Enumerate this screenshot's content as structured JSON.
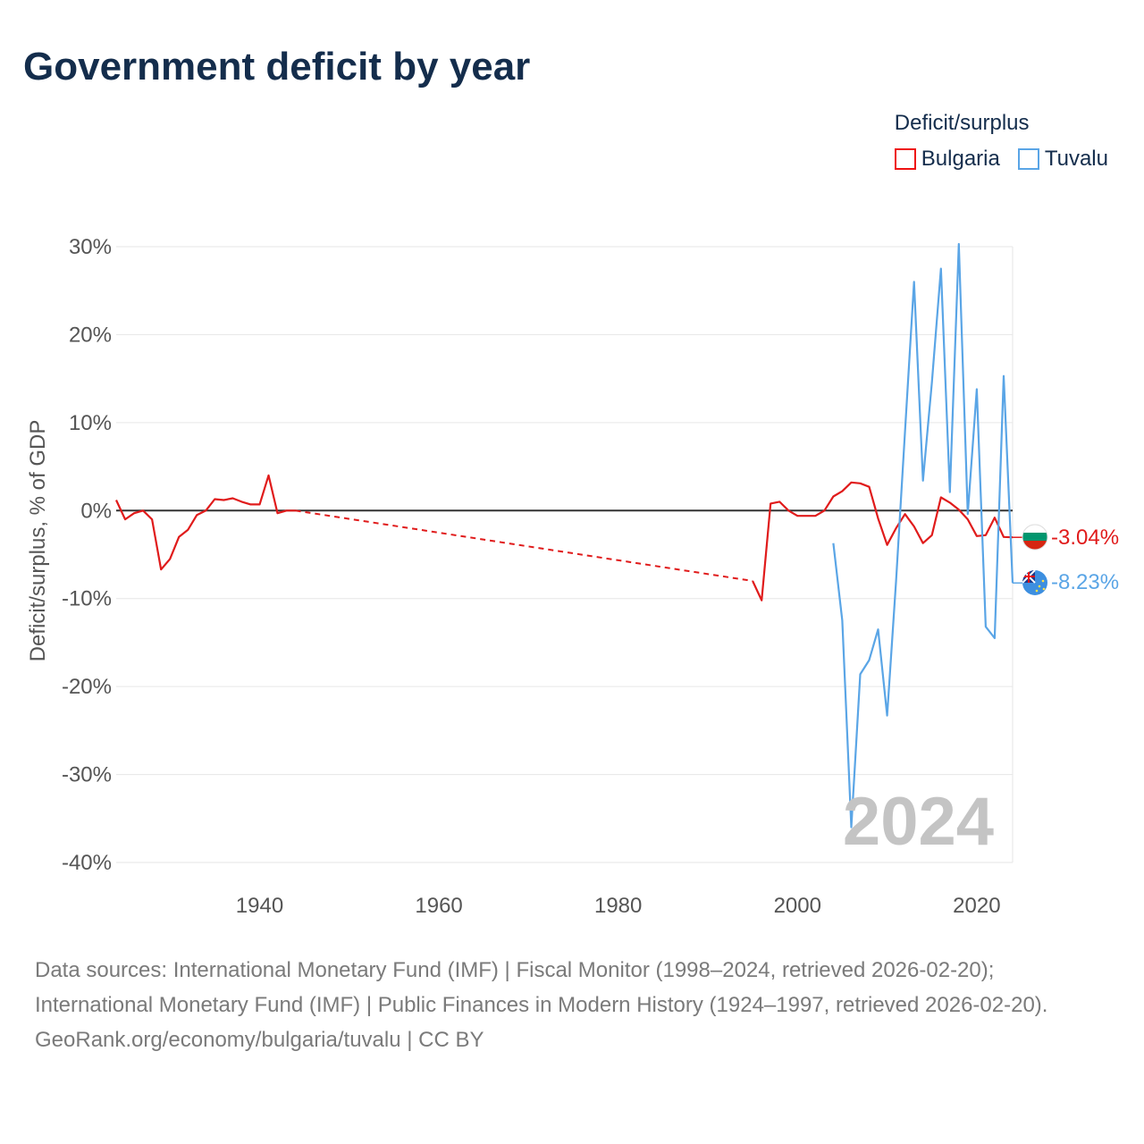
{
  "chart_data": {
    "type": "line",
    "title": "Government deficit by year",
    "ylabel": "Deficit/surplus, % of GDP",
    "xlabel": "",
    "xlim": [
      1924,
      2024
    ],
    "ylim": [
      -40,
      30
    ],
    "xticks": [
      1940,
      1960,
      1980,
      2000,
      2020
    ],
    "yticks": [
      30,
      20,
      10,
      0,
      -10,
      -20,
      -30,
      -40
    ],
    "ytick_labels": [
      "30%",
      "20%",
      "10%",
      "0%",
      "-10%",
      "-20%",
      "-30%",
      "-40%"
    ],
    "xtick_labels": [
      "1940",
      "1960",
      "1980",
      "2000",
      "2020"
    ],
    "legend_title": "Deficit/surplus",
    "year_watermark": "2024",
    "series": [
      {
        "name": "Bulgaria",
        "color": "#e01b1b",
        "end_label": "-3.04%",
        "flag_icon": "bulgaria-flag-icon",
        "gap_range": [
          1944,
          1995
        ],
        "points": [
          [
            1924,
            1.2
          ],
          [
            1925,
            -1.0
          ],
          [
            1926,
            -0.3
          ],
          [
            1927,
            0.0
          ],
          [
            1928,
            -1.0
          ],
          [
            1929,
            -6.7
          ],
          [
            1930,
            -5.5
          ],
          [
            1931,
            -3.0
          ],
          [
            1932,
            -2.2
          ],
          [
            1933,
            -0.5
          ],
          [
            1934,
            0.0
          ],
          [
            1935,
            1.3
          ],
          [
            1936,
            1.2
          ],
          [
            1937,
            1.4
          ],
          [
            1938,
            1.0
          ],
          [
            1939,
            0.7
          ],
          [
            1940,
            0.7
          ],
          [
            1941,
            4.0
          ],
          [
            1942,
            -0.3
          ],
          [
            1943,
            0.0
          ],
          [
            1944,
            0.0
          ],
          [
            1995,
            -8.0
          ],
          [
            1996,
            -10.2
          ],
          [
            1997,
            0.8
          ],
          [
            1998,
            1.0
          ],
          [
            1999,
            0.0
          ],
          [
            2000,
            -0.6
          ],
          [
            2001,
            -0.6
          ],
          [
            2002,
            -0.6
          ],
          [
            2003,
            0.0
          ],
          [
            2004,
            1.6
          ],
          [
            2005,
            2.2
          ],
          [
            2006,
            3.2
          ],
          [
            2007,
            3.1
          ],
          [
            2008,
            2.7
          ],
          [
            2009,
            -0.9
          ],
          [
            2010,
            -3.9
          ],
          [
            2011,
            -2.0
          ],
          [
            2012,
            -0.4
          ],
          [
            2013,
            -1.8
          ],
          [
            2014,
            -3.7
          ],
          [
            2015,
            -2.8
          ],
          [
            2016,
            1.5
          ],
          [
            2017,
            0.9
          ],
          [
            2018,
            0.1
          ],
          [
            2019,
            -1.0
          ],
          [
            2020,
            -2.9
          ],
          [
            2021,
            -2.8
          ],
          [
            2022,
            -0.8
          ],
          [
            2023,
            -3.0
          ],
          [
            2024,
            -3.04
          ]
        ]
      },
      {
        "name": "Tuvalu",
        "color": "#5aa5e6",
        "end_label": "-8.23%",
        "flag_icon": "tuvalu-flag-icon",
        "points": [
          [
            2004,
            -3.7
          ],
          [
            2005,
            -12.5
          ],
          [
            2006,
            -36.0
          ],
          [
            2007,
            -18.6
          ],
          [
            2008,
            -17.0
          ],
          [
            2009,
            -13.5
          ],
          [
            2010,
            -23.3
          ],
          [
            2011,
            -8.0
          ],
          [
            2012,
            9.0
          ],
          [
            2013,
            26.0
          ],
          [
            2014,
            3.4
          ],
          [
            2015,
            14.6
          ],
          [
            2016,
            27.5
          ],
          [
            2017,
            2.1
          ],
          [
            2018,
            30.3
          ],
          [
            2019,
            -0.4
          ],
          [
            2020,
            13.8
          ],
          [
            2021,
            -13.2
          ],
          [
            2022,
            -14.5
          ],
          [
            2023,
            15.3
          ],
          [
            2024,
            -8.23
          ]
        ]
      }
    ]
  },
  "footer": {
    "sources": "Data sources: International Monetary Fund (IMF) | Fiscal Monitor (1998–2024, retrieved 2026-02-20); International Monetary Fund (IMF) | Public Finances in Modern History (1924–1997, retrieved 2026-02-20).",
    "credit": "GeoRank.org/economy/bulgaria/tuvalu | CC BY"
  }
}
